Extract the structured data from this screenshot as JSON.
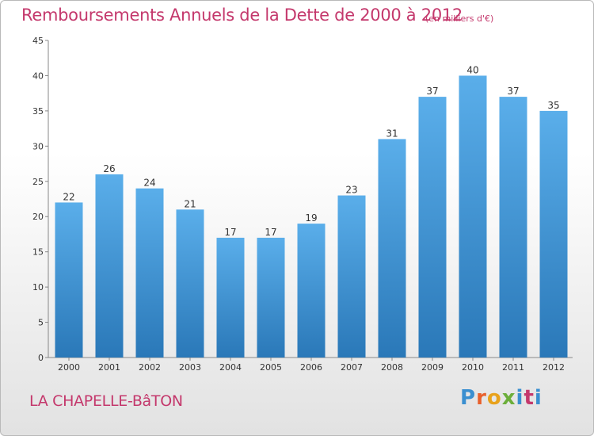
{
  "header": {
    "title": "Remboursements Annuels de la Dette de 2000 à 2012",
    "unit": "(en milliers d'€)"
  },
  "footer": {
    "city": "LA CHAPELLE-BâTON",
    "logo": [
      "P",
      "r",
      "o",
      "x",
      "i",
      "t",
      "i"
    ]
  },
  "colors": {
    "title": "#c4386c",
    "bar_top": "#5aaeea",
    "bar_bottom": "#2a78b8"
  },
  "chart_data": {
    "type": "bar",
    "categories": [
      "2000",
      "2001",
      "2002",
      "2003",
      "2004",
      "2005",
      "2006",
      "2007",
      "2008",
      "2009",
      "2010",
      "2011",
      "2012"
    ],
    "values": [
      22,
      26,
      24,
      21,
      17,
      17,
      19,
      23,
      31,
      37,
      40,
      37,
      35
    ],
    "data_labels": [
      "22",
      "26",
      "24",
      "21",
      "17",
      "17",
      "19",
      "23",
      "31",
      "37",
      "40",
      "37",
      "35"
    ],
    "title": "Remboursements Annuels de la Dette de 2000 à 2012",
    "xlabel": "",
    "ylabel": "",
    "ylim": [
      0,
      45
    ],
    "yticks": [
      0,
      5,
      10,
      15,
      20,
      25,
      30,
      35,
      40,
      45
    ],
    "grid": false,
    "legend": "none"
  }
}
